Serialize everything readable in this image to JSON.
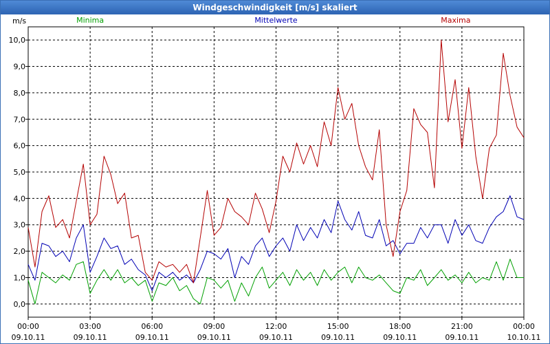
{
  "window": {
    "title": "Windgeschwindigkeit [m/s] skaliert"
  },
  "chart_data": {
    "type": "line",
    "title": "Windgeschwindigkeit [m/s] skaliert",
    "ylabel": "m/s",
    "ylim": [
      -0.5,
      10.5
    ],
    "y_ticks": [
      0,
      1,
      2,
      3,
      4,
      5,
      6,
      7,
      8,
      9,
      10
    ],
    "y_tick_labels": [
      "0,0",
      "1,0",
      "2,0",
      "3,0",
      "4,0",
      "5,0",
      "6,0",
      "7,0",
      "8,0",
      "9,0",
      "10,0"
    ],
    "xlim": [
      0,
      24
    ],
    "x_ticks": [
      0,
      3,
      6,
      9,
      12,
      15,
      18,
      21,
      24
    ],
    "x_tick_labels": [
      "00:00",
      "03:00",
      "06:00",
      "09:00",
      "12:00",
      "15:00",
      "18:00",
      "21:00",
      "00:00"
    ],
    "x_date_labels": [
      "09.10.11",
      "09.10.11",
      "09.10.11",
      "09.10.11",
      "09.10.11",
      "09.10.11",
      "09.10.11",
      "09.10.11",
      "10.10.11"
    ],
    "grid": true,
    "series": [
      {
        "name": "Minima",
        "color": "#00a000",
        "x": [
          0,
          0.33,
          0.67,
          1,
          1.33,
          1.67,
          2,
          2.33,
          2.67,
          3,
          3.33,
          3.67,
          4,
          4.33,
          4.67,
          5,
          5.33,
          5.67,
          6,
          6.33,
          6.67,
          7,
          7.33,
          7.67,
          8,
          8.33,
          8.67,
          9,
          9.33,
          9.67,
          10,
          10.33,
          10.67,
          11,
          11.33,
          11.67,
          12,
          12.33,
          12.67,
          13,
          13.33,
          13.67,
          14,
          14.33,
          14.67,
          15,
          15.33,
          15.67,
          16,
          16.33,
          16.67,
          17,
          17.33,
          17.67,
          18,
          18.33,
          18.67,
          19,
          19.33,
          19.67,
          20,
          20.33,
          20.67,
          21,
          21.33,
          21.67,
          22,
          22.33,
          22.67,
          23,
          23.33,
          23.67,
          24
        ],
        "values": [
          0.9,
          0.0,
          1.2,
          1.0,
          0.8,
          1.1,
          0.9,
          1.5,
          1.6,
          0.4,
          0.9,
          1.3,
          0.9,
          1.3,
          0.8,
          1.0,
          0.7,
          0.9,
          0.1,
          0.8,
          0.7,
          1.0,
          0.5,
          0.7,
          0.2,
          0.0,
          1.0,
          0.9,
          0.6,
          0.9,
          0.1,
          0.8,
          0.3,
          1.0,
          1.4,
          0.6,
          0.9,
          1.2,
          0.7,
          1.3,
          0.9,
          1.2,
          0.7,
          1.3,
          0.9,
          1.2,
          1.4,
          0.8,
          1.4,
          1.0,
          0.9,
          1.1,
          0.8,
          0.5,
          0.4,
          1.0,
          0.9,
          1.3,
          0.7,
          1.0,
          1.3,
          0.9,
          1.1,
          0.8,
          1.2,
          0.8,
          1.0,
          0.9,
          1.6,
          0.9,
          1.7,
          1.0,
          1.0
        ],
        "label": {
          "text": "Minima",
          "x": 3
        }
      },
      {
        "name": "Mittelwerte",
        "color": "#0000b4",
        "x": [
          0,
          0.33,
          0.67,
          1,
          1.33,
          1.67,
          2,
          2.33,
          2.67,
          3,
          3.33,
          3.67,
          4,
          4.33,
          4.67,
          5,
          5.33,
          5.67,
          6,
          6.33,
          6.67,
          7,
          7.33,
          7.67,
          8,
          8.33,
          8.67,
          9,
          9.33,
          9.67,
          10,
          10.33,
          10.67,
          11,
          11.33,
          11.67,
          12,
          12.33,
          12.67,
          13,
          13.33,
          13.67,
          14,
          14.33,
          14.67,
          15,
          15.33,
          15.67,
          16,
          16.33,
          16.67,
          17,
          17.33,
          17.67,
          18,
          18.33,
          18.67,
          19,
          19.33,
          19.67,
          20,
          20.33,
          20.67,
          21,
          21.33,
          21.67,
          22,
          22.33,
          22.67,
          23,
          23.33,
          23.67,
          24
        ],
        "values": [
          1.5,
          0.9,
          2.3,
          2.2,
          1.8,
          2.0,
          1.6,
          2.5,
          3.0,
          1.2,
          1.8,
          2.5,
          2.1,
          2.2,
          1.5,
          1.7,
          1.3,
          1.1,
          0.5,
          1.2,
          1.0,
          1.2,
          0.9,
          1.1,
          0.8,
          1.3,
          2.0,
          1.9,
          1.7,
          2.1,
          1.0,
          1.8,
          1.5,
          2.2,
          2.5,
          1.8,
          2.2,
          2.5,
          2.0,
          3.0,
          2.4,
          2.9,
          2.5,
          3.2,
          2.7,
          3.9,
          3.2,
          2.8,
          3.5,
          2.6,
          2.5,
          3.2,
          2.2,
          2.4,
          1.9,
          2.3,
          2.3,
          2.9,
          2.5,
          3.0,
          3.0,
          2.3,
          3.2,
          2.6,
          3.0,
          2.4,
          2.3,
          2.9,
          3.3,
          3.5,
          4.1,
          3.3,
          3.2
        ],
        "label": {
          "text": "Mittelwerte",
          "x": 12
        }
      },
      {
        "name": "Maxima",
        "color": "#b40000",
        "x": [
          0,
          0.33,
          0.67,
          1,
          1.33,
          1.67,
          2,
          2.33,
          2.67,
          3,
          3.33,
          3.67,
          4,
          4.33,
          4.67,
          5,
          5.33,
          5.67,
          6,
          6.33,
          6.67,
          7,
          7.33,
          7.67,
          8,
          8.33,
          8.67,
          9,
          9.33,
          9.67,
          10,
          10.33,
          10.67,
          11,
          11.33,
          11.67,
          12,
          12.33,
          12.67,
          13,
          13.33,
          13.67,
          14,
          14.33,
          14.67,
          15,
          15.33,
          15.67,
          16,
          16.33,
          16.67,
          17,
          17.33,
          17.67,
          18,
          18.33,
          18.67,
          19,
          19.33,
          19.67,
          20,
          20.33,
          20.67,
          21,
          21.33,
          21.67,
          22,
          22.33,
          22.67,
          23,
          23.33,
          23.67,
          24
        ],
        "values": [
          2.9,
          1.4,
          3.5,
          4.1,
          2.9,
          3.2,
          2.5,
          3.9,
          5.3,
          3.0,
          3.4,
          5.6,
          4.9,
          3.8,
          4.2,
          2.5,
          2.6,
          1.2,
          0.9,
          1.6,
          1.4,
          1.5,
          1.2,
          1.5,
          0.8,
          2.5,
          4.3,
          2.6,
          2.9,
          4.0,
          3.5,
          3.3,
          3.0,
          4.2,
          3.6,
          2.7,
          3.9,
          5.6,
          5.0,
          6.1,
          5.3,
          6.0,
          5.2,
          6.9,
          6.0,
          8.2,
          7.0,
          7.6,
          6.0,
          5.2,
          4.7,
          6.6,
          3.0,
          1.8,
          3.5,
          4.3,
          7.4,
          6.8,
          6.5,
          4.4,
          10.0,
          6.9,
          8.5,
          5.9,
          8.2,
          5.6,
          4.0,
          5.9,
          6.4,
          9.5,
          7.9,
          6.7,
          6.3
        ],
        "label": {
          "text": "Maxima",
          "x": 20.7
        }
      }
    ]
  }
}
